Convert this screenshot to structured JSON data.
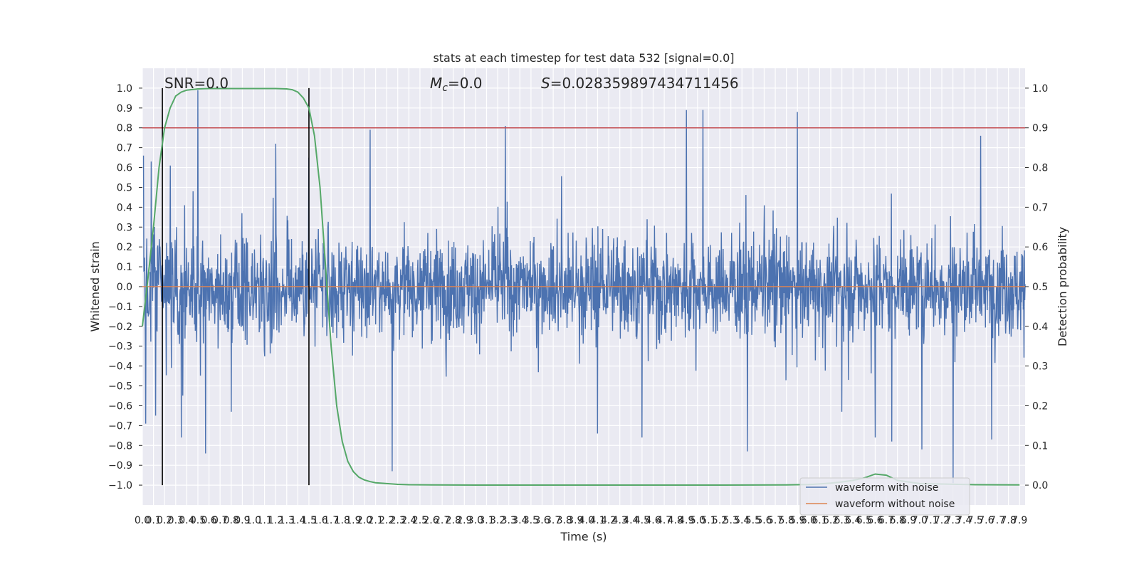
{
  "chart_data": {
    "type": "line",
    "title": "stats at each timestep for test data 532 [signal=0.0]",
    "xlabel": "Time (s)",
    "ylabel": "Whitened strain",
    "y2label": "Detection probability",
    "xlim": [
      0.0,
      7.95
    ],
    "ylim": [
      -1.1,
      1.1
    ],
    "y2lim": [
      -0.05,
      1.05
    ],
    "xticks": [
      "0.0",
      "0.1",
      "0.2",
      "0.3",
      "0.4",
      "0.5",
      "0.6",
      "0.7",
      "0.8",
      "0.9",
      "1.0",
      "1.1",
      "1.2",
      "1.3",
      "1.4",
      "1.5",
      "1.6",
      "1.7",
      "1.8",
      "1.9",
      "2.0",
      "2.1",
      "2.2",
      "2.3",
      "2.4",
      "2.5",
      "2.6",
      "2.7",
      "2.8",
      "2.9",
      "3.0",
      "3.1",
      "3.2",
      "3.3",
      "3.4",
      "3.5",
      "3.6",
      "3.7",
      "3.8",
      "3.9",
      "4.0",
      "4.1",
      "4.2",
      "4.3",
      "4.4",
      "4.5",
      "4.6",
      "4.7",
      "4.8",
      "4.9",
      "5.0",
      "5.1",
      "5.2",
      "5.3",
      "5.4",
      "5.5",
      "5.6",
      "5.7",
      "5.8",
      "5.9",
      "6.0",
      "6.1",
      "6.2",
      "6.3",
      "6.4",
      "6.5",
      "6.6",
      "6.7",
      "6.8",
      "6.9",
      "7.0",
      "7.1",
      "7.2",
      "7.3",
      "7.4",
      "7.5",
      "7.6",
      "7.7",
      "7.8",
      "7.9"
    ],
    "yticks": [
      "1.0",
      "0.9",
      "0.8",
      "0.7",
      "0.6",
      "0.5",
      "0.4",
      "0.3",
      "0.2",
      "0.1",
      "0.0",
      "−0.1",
      "−0.2",
      "−0.3",
      "−0.4",
      "−0.5",
      "−0.6",
      "−0.7",
      "−0.8",
      "−0.9",
      "−1.0"
    ],
    "y2ticks": [
      "1.0",
      "0.9",
      "0.8",
      "0.7",
      "0.6",
      "0.5",
      "0.4",
      "0.3",
      "0.2",
      "0.1",
      "0.0"
    ],
    "annotations": {
      "snr": "SNR=0.0",
      "mc_symbol": "M",
      "mc_sub": "c",
      "mc_value": "=0.0",
      "s_symbol": "S",
      "s_value": "=0.028359897434711456"
    },
    "vlines_x": [
      0.18,
      1.5
    ],
    "hline_y2": 0.9,
    "series": [
      {
        "name": "waveform with noise",
        "color": "#4c72b0",
        "envelope": "noise with peaks up to about 1.0 and troughs down to about -1.0"
      },
      {
        "name": "waveform without noise",
        "color": "#dd8452",
        "values_constant": 0.0
      },
      {
        "color": "#55a868",
        "axis": "right",
        "x": [
          0.0,
          0.05,
          0.1,
          0.15,
          0.2,
          0.25,
          0.3,
          0.35,
          0.4,
          0.5,
          0.6,
          0.8,
          1.0,
          1.2,
          1.3,
          1.35,
          1.4,
          1.45,
          1.5,
          1.55,
          1.6,
          1.65,
          1.7,
          1.75,
          1.8,
          1.85,
          1.9,
          1.95,
          2.0,
          2.05,
          2.1,
          2.2,
          2.3,
          2.4,
          2.6,
          3.0,
          4.0,
          5.0,
          5.8,
          6.0,
          6.1,
          6.2,
          6.3,
          6.4,
          6.5,
          6.6,
          6.7,
          6.8,
          7.0,
          7.5,
          7.9
        ],
        "values": [
          0.4,
          0.52,
          0.65,
          0.8,
          0.9,
          0.95,
          0.98,
          0.99,
          0.995,
          0.998,
          0.999,
          0.999,
          0.999,
          0.999,
          0.998,
          0.996,
          0.99,
          0.975,
          0.95,
          0.88,
          0.75,
          0.55,
          0.35,
          0.2,
          0.11,
          0.06,
          0.034,
          0.02,
          0.013,
          0.009,
          0.006,
          0.004,
          0.002,
          0.001,
          0.0005,
          0.0002,
          0.0001,
          0.0001,
          0.0005,
          0.0015,
          0.003,
          0.005,
          0.008,
          0.012,
          0.018,
          0.028,
          0.025,
          0.012,
          0.004,
          0.001,
          0.0005
        ]
      }
    ],
    "noise_peaks": [
      [
        0.0,
        0.66
      ],
      [
        0.03,
        -0.69
      ],
      [
        0.08,
        0.63
      ],
      [
        0.12,
        -0.65
      ],
      [
        0.25,
        0.61
      ],
      [
        0.35,
        -0.76
      ],
      [
        0.5,
        0.99
      ],
      [
        0.57,
        -0.84
      ],
      [
        0.8,
        -0.63
      ],
      [
        1.2,
        0.72
      ],
      [
        1.5,
        0.65
      ],
      [
        2.05,
        0.79
      ],
      [
        2.25,
        -0.93
      ],
      [
        3.27,
        0.81
      ],
      [
        4.1,
        -0.74
      ],
      [
        4.5,
        -0.76
      ],
      [
        4.9,
        0.89
      ],
      [
        5.05,
        0.89
      ],
      [
        5.45,
        -0.83
      ],
      [
        5.9,
        0.88
      ],
      [
        6.3,
        -0.63
      ],
      [
        6.6,
        -0.76
      ],
      [
        6.75,
        -0.78
      ],
      [
        7.02,
        -0.82
      ],
      [
        7.3,
        -0.99
      ],
      [
        7.55,
        0.76
      ],
      [
        7.65,
        -0.77
      ]
    ],
    "grid": true,
    "legend_position": "lower-right"
  }
}
